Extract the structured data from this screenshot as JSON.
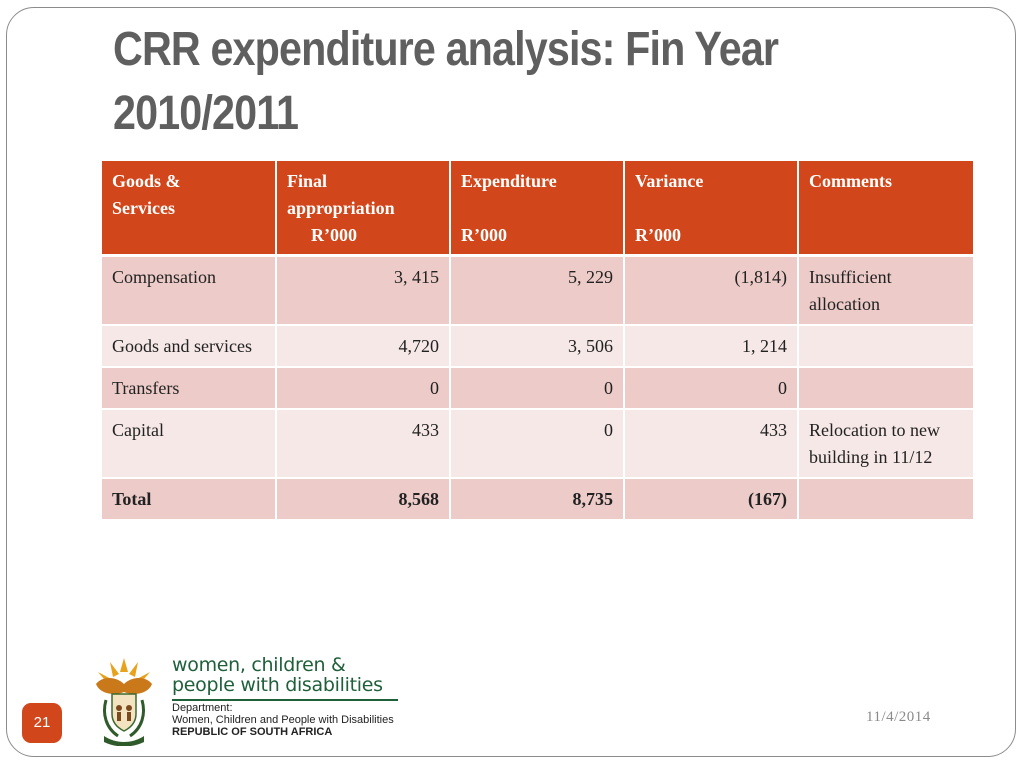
{
  "slide": {
    "title_line1": "CRR expenditure analysis: Fin Year",
    "title_line2": "2010/2011",
    "page_number": "21",
    "date": "11/4/2014"
  },
  "table": {
    "headers": [
      {
        "line1": "Goods &",
        "line2": "Services"
      },
      {
        "line1": "Final",
        "line2": "appropriation",
        "line3": "R’000"
      },
      {
        "line1": "Expenditure",
        "line3": "R’000"
      },
      {
        "line1": "Variance",
        "line3": "R’000"
      },
      {
        "line1": "Comments"
      }
    ],
    "rows": [
      {
        "item": "Compensation",
        "final": "3, 415",
        "expenditure": "5, 229",
        "variance": "(1,814)",
        "comments": "Insufficient allocation"
      },
      {
        "item": "Goods and services",
        "final": "4,720",
        "expenditure": "3, 506",
        "variance": "1, 214",
        "comments": ""
      },
      {
        "item": "Transfers",
        "final": "0",
        "expenditure": "0",
        "variance": "0",
        "comments": ""
      },
      {
        "item": "Capital",
        "final": "433",
        "expenditure": "0",
        "variance": "433",
        "comments": "Relocation to new building in 11/12"
      }
    ],
    "total": {
      "item": "Total",
      "final": "8,568",
      "expenditure": "8,735",
      "variance": "(167)",
      "comments": ""
    }
  },
  "logo": {
    "line1": "women, children &",
    "line2": "people with disabilities",
    "dept_label": "Department:",
    "dept_name": "Women, Children and People with Disabilities",
    "country": "REPUBLIC OF SOUTH AFRICA",
    "icon": "coat-of-arms-icon"
  },
  "colors": {
    "accent": "#d1461a",
    "row_dark": "#eccbc8",
    "row_light": "#f6e8e6",
    "title": "#5f5f5f",
    "logo_green": "#1f5f3a"
  }
}
